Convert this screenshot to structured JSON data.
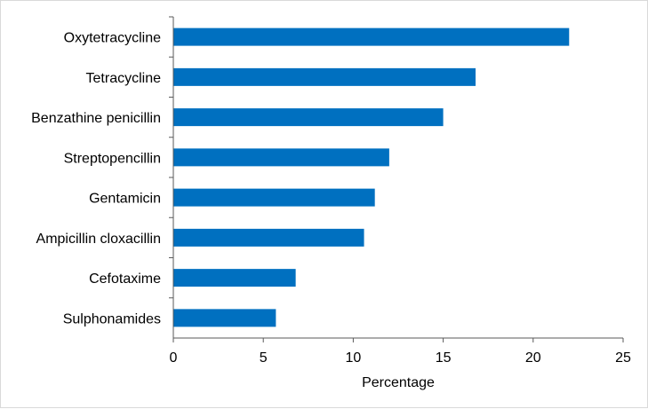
{
  "chart_data": {
    "type": "bar",
    "orientation": "horizontal",
    "categories": [
      "Oxytetracycline",
      "Tetracycline",
      "Benzathine penicillin",
      "Streptopencillin",
      "Gentamicin",
      "Ampicillin cloxacillin",
      "Cefotaxime",
      "Sulphonamides"
    ],
    "values": [
      22.0,
      16.8,
      15.0,
      12.0,
      11.2,
      10.6,
      6.8,
      5.7
    ],
    "xlabel": "Percentage",
    "ylabel": "",
    "title": "",
    "xlim": [
      0,
      25
    ],
    "xticks": [
      "0",
      "5",
      "10",
      "15",
      "20",
      "25"
    ],
    "grid": false,
    "bar_color": "#0070c0"
  }
}
